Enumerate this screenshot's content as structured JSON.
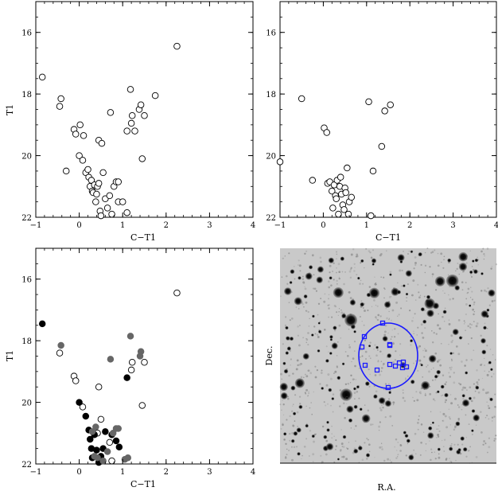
{
  "chart_data": [
    {
      "type": "scatter",
      "panel": "top-left",
      "xlabel": "C−T1",
      "ylabel": "T1",
      "xlim": [
        -1,
        4
      ],
      "ylim": [
        22,
        15
      ],
      "x_ticks": [
        "−1",
        "0",
        "1",
        "2",
        "3",
        "4"
      ],
      "y_ticks": [
        "16",
        "18",
        "20",
        "22"
      ],
      "x_tick_values": [
        -1,
        0,
        1,
        2,
        3,
        4
      ],
      "y_tick_values": [
        16,
        18,
        20,
        22
      ],
      "series": [
        {
          "marker": "open-circle",
          "points": [
            [
              -0.85,
              17.45
            ],
            [
              -0.42,
              18.15
            ],
            [
              -0.45,
              18.4
            ],
            [
              -0.3,
              20.5
            ],
            [
              -0.12,
              19.15
            ],
            [
              -0.08,
              19.3
            ],
            [
              0.02,
              19.0
            ],
            [
              0.0,
              20.0
            ],
            [
              0.08,
              20.15
            ],
            [
              0.1,
              19.35
            ],
            [
              0.15,
              20.55
            ],
            [
              0.2,
              20.45
            ],
            [
              0.22,
              20.7
            ],
            [
              0.25,
              21.0
            ],
            [
              0.28,
              20.8
            ],
            [
              0.3,
              21.15
            ],
            [
              0.32,
              21.2
            ],
            [
              0.35,
              20.95
            ],
            [
              0.38,
              21.5
            ],
            [
              0.4,
              21.25
            ],
            [
              0.42,
              21.0
            ],
            [
              0.45,
              20.9
            ],
            [
              0.45,
              19.5
            ],
            [
              0.48,
              21.8
            ],
            [
              0.5,
              21.95
            ],
            [
              0.52,
              19.6
            ],
            [
              0.55,
              20.55
            ],
            [
              0.6,
              21.4
            ],
            [
              0.65,
              21.7
            ],
            [
              0.7,
              21.3
            ],
            [
              0.72,
              18.6
            ],
            [
              0.75,
              21.9
            ],
            [
              0.8,
              21.0
            ],
            [
              0.85,
              20.85
            ],
            [
              0.9,
              20.85
            ],
            [
              0.9,
              21.5
            ],
            [
              1.0,
              21.5
            ],
            [
              1.1,
              21.85
            ],
            [
              1.1,
              19.2
            ],
            [
              1.18,
              17.85
            ],
            [
              1.2,
              18.95
            ],
            [
              1.22,
              18.7
            ],
            [
              1.28,
              19.2
            ],
            [
              1.38,
              18.5
            ],
            [
              1.42,
              18.35
            ],
            [
              1.45,
              20.1
            ],
            [
              1.5,
              18.7
            ],
            [
              1.75,
              18.05
            ],
            [
              2.25,
              16.45
            ]
          ]
        }
      ]
    },
    {
      "type": "scatter",
      "panel": "top-right",
      "xlabel": "C−T1",
      "ylabel": "",
      "xlim": [
        -1,
        4
      ],
      "ylim": [
        22,
        15
      ],
      "x_ticks": [
        "−1",
        "0",
        "1",
        "2",
        "3",
        "4"
      ],
      "y_ticks": [
        "16",
        "18",
        "20",
        "22"
      ],
      "x_tick_values": [
        -1,
        0,
        1,
        2,
        3,
        4
      ],
      "y_tick_values": [
        16,
        18,
        20,
        22
      ],
      "series": [
        {
          "marker": "open-circle",
          "points": [
            [
              -1.0,
              20.2
            ],
            [
              -0.5,
              18.15
            ],
            [
              -0.25,
              20.8
            ],
            [
              0.02,
              19.1
            ],
            [
              0.08,
              19.25
            ],
            [
              0.1,
              20.9
            ],
            [
              0.15,
              20.85
            ],
            [
              0.2,
              21.15
            ],
            [
              0.22,
              21.7
            ],
            [
              0.25,
              20.95
            ],
            [
              0.28,
              21.3
            ],
            [
              0.3,
              21.4
            ],
            [
              0.32,
              20.8
            ],
            [
              0.35,
              21.9
            ],
            [
              0.38,
              21.0
            ],
            [
              0.4,
              20.7
            ],
            [
              0.42,
              21.25
            ],
            [
              0.45,
              21.6
            ],
            [
              0.48,
              21.75
            ],
            [
              0.5,
              21.05
            ],
            [
              0.52,
              21.2
            ],
            [
              0.55,
              20.4
            ],
            [
              0.58,
              21.9
            ],
            [
              0.6,
              21.5
            ],
            [
              0.65,
              21.35
            ],
            [
              1.05,
              18.25
            ],
            [
              1.1,
              21.95
            ],
            [
              1.15,
              20.5
            ],
            [
              1.35,
              19.7
            ],
            [
              1.42,
              18.55
            ],
            [
              1.55,
              18.35
            ]
          ]
        }
      ]
    },
    {
      "type": "scatter",
      "panel": "bottom-left",
      "xlabel": "C−T1",
      "ylabel": "T1",
      "xlim": [
        -1,
        4
      ],
      "ylim": [
        22,
        15
      ],
      "x_ticks": [
        "−1",
        "0",
        "1",
        "2",
        "3",
        "4"
      ],
      "y_ticks": [
        "16",
        "18",
        "20",
        "22"
      ],
      "x_tick_values": [
        -1,
        0,
        1,
        2,
        3,
        4
      ],
      "y_tick_values": [
        16,
        18,
        20,
        22
      ],
      "series": [
        {
          "marker": "open-circle",
          "points": [
            [
              -0.45,
              18.4
            ],
            [
              -0.12,
              19.15
            ],
            [
              -0.08,
              19.3
            ],
            [
              0.08,
              20.15
            ],
            [
              0.45,
              19.5
            ],
            [
              0.5,
              20.55
            ],
            [
              0.42,
              21.0
            ],
            [
              0.7,
              21.3
            ],
            [
              0.75,
              21.9
            ],
            [
              1.2,
              18.95
            ],
            [
              1.22,
              18.7
            ],
            [
              1.45,
              20.1
            ],
            [
              1.5,
              18.7
            ],
            [
              2.25,
              16.45
            ]
          ]
        },
        {
          "marker": "filled-circle",
          "color": "#000000",
          "points": [
            [
              -0.85,
              17.45
            ],
            [
              0.0,
              20.0
            ],
            [
              0.15,
              20.45
            ],
            [
              0.22,
              20.9
            ],
            [
              0.25,
              21.2
            ],
            [
              0.28,
              21.5
            ],
            [
              0.3,
              21.8
            ],
            [
              0.35,
              21.05
            ],
            [
              0.4,
              21.55
            ],
            [
              0.45,
              21.95
            ],
            [
              0.5,
              21.75
            ],
            [
              0.55,
              21.5
            ],
            [
              0.6,
              20.95
            ],
            [
              0.75,
              21.05
            ],
            [
              0.85,
              21.25
            ],
            [
              0.92,
              21.45
            ],
            [
              1.1,
              19.2
            ]
          ]
        },
        {
          "marker": "filled-circle",
          "color": "#666666",
          "points": [
            [
              -0.42,
              18.15
            ],
            [
              0.3,
              20.95
            ],
            [
              0.35,
              21.75
            ],
            [
              0.38,
              20.8
            ],
            [
              0.42,
              21.8
            ],
            [
              0.55,
              21.9
            ],
            [
              0.65,
              21.6
            ],
            [
              0.72,
              18.6
            ],
            [
              0.78,
              21.0
            ],
            [
              0.85,
              20.85
            ],
            [
              0.9,
              20.85
            ],
            [
              1.05,
              21.85
            ],
            [
              1.18,
              17.85
            ],
            [
              1.42,
              18.35
            ],
            [
              1.4,
              18.5
            ],
            [
              1.12,
              21.8
            ]
          ]
        }
      ]
    }
  ],
  "sky_image": {
    "xlabel": "R.A.",
    "ylabel": "Dec.",
    "circle_color": "#1a1aff"
  }
}
